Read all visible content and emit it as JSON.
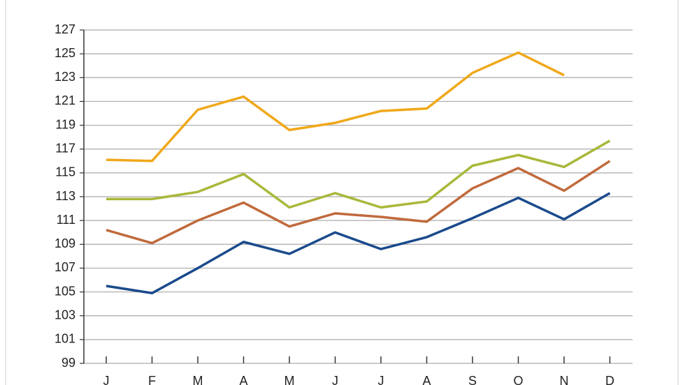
{
  "chart_data": {
    "type": "line",
    "categories": [
      "J",
      "F",
      "M",
      "A",
      "M",
      "J",
      "J",
      "A",
      "S",
      "O",
      "N",
      "D"
    ],
    "series": [
      {
        "color": "#f0a81a",
        "values": [
          116.1,
          116.0,
          120.3,
          121.4,
          118.6,
          119.2,
          120.2,
          120.4,
          123.4,
          125.1,
          123.2,
          null
        ]
      },
      {
        "color": "#a9b83a",
        "values": [
          112.8,
          112.8,
          113.4,
          114.9,
          112.1,
          113.3,
          112.1,
          112.6,
          115.6,
          116.5,
          115.5,
          117.7
        ]
      },
      {
        "color": "#c06a3c",
        "values": [
          110.2,
          109.1,
          111.0,
          112.5,
          110.5,
          111.6,
          111.3,
          110.9,
          113.7,
          115.4,
          113.5,
          116.0
        ]
      },
      {
        "color": "#1a4a8c",
        "values": [
          105.5,
          104.9,
          107.0,
          109.2,
          108.2,
          110.0,
          108.6,
          109.6,
          111.2,
          112.9,
          111.1,
          113.3
        ]
      }
    ],
    "ylim": [
      99,
      127
    ],
    "yticks": [
      99,
      101,
      103,
      105,
      107,
      109,
      111,
      113,
      115,
      117,
      119,
      121,
      123,
      125,
      127
    ],
    "grid": true
  }
}
